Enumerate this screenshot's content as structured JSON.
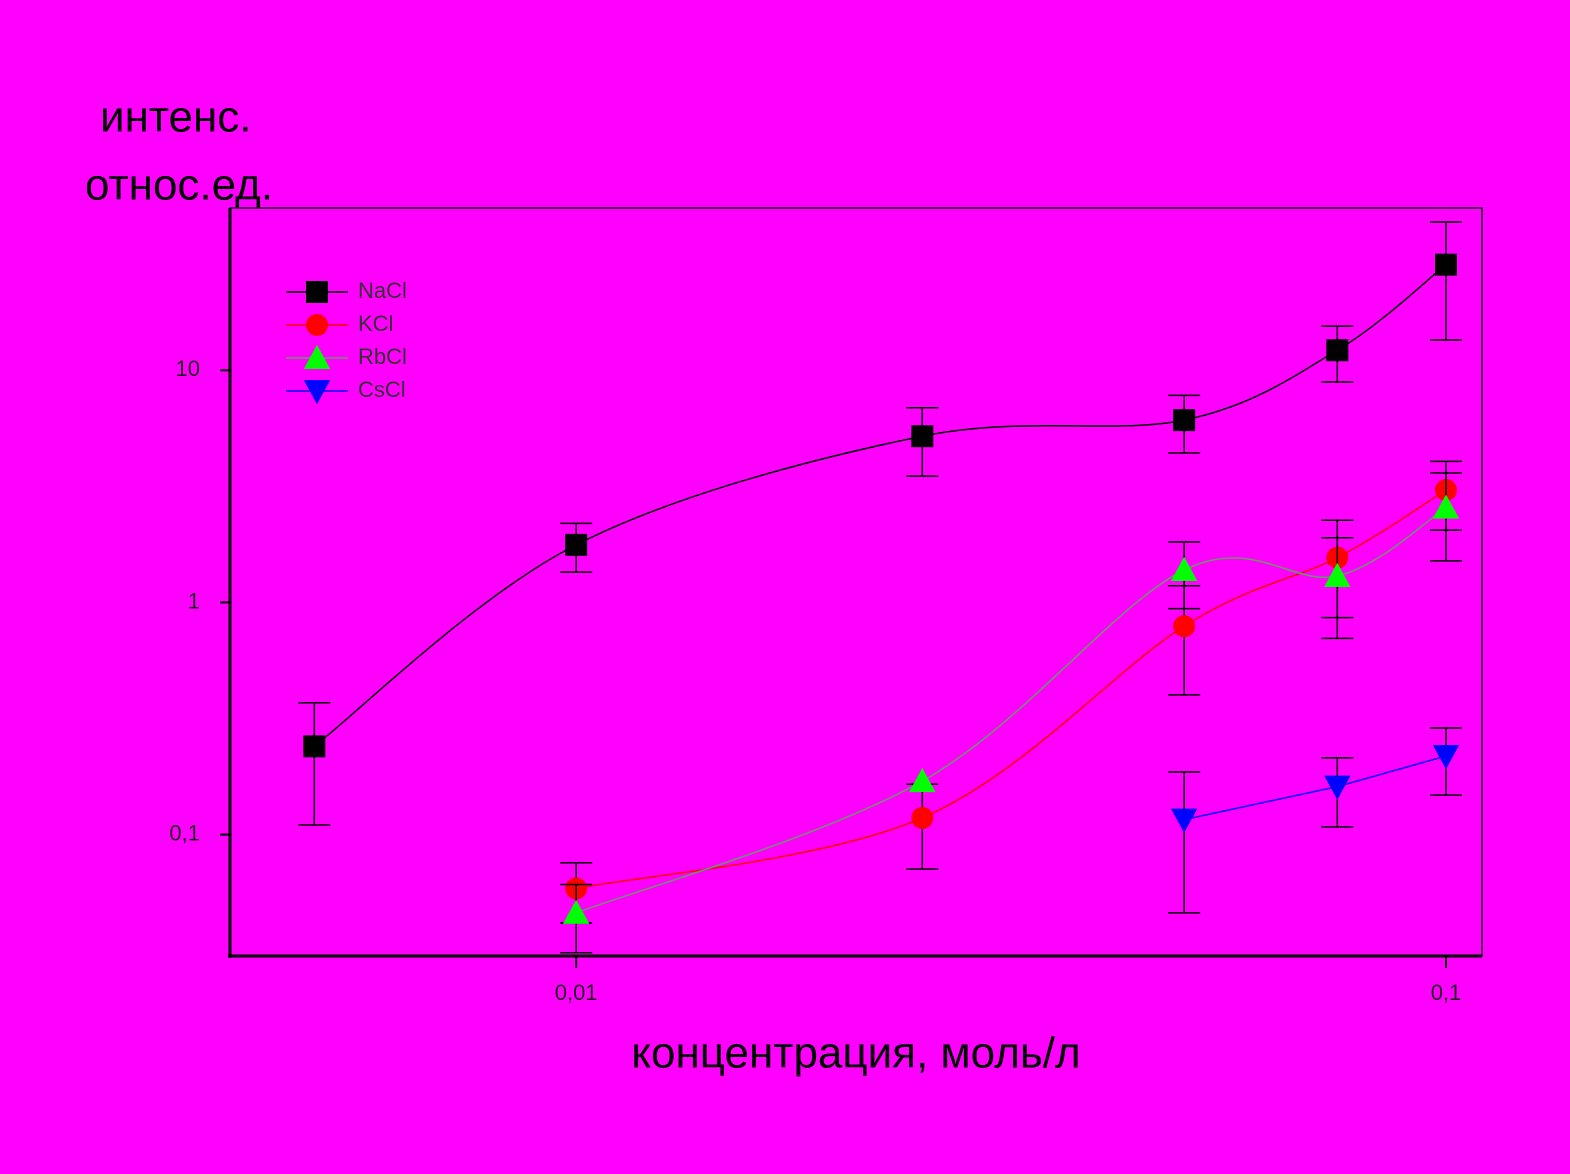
{
  "chart_data": {
    "type": "scatter",
    "y_label_lines": [
      "интенс.",
      "относ.ед."
    ],
    "x_label": "концентрация, моль/л",
    "x": [
      0.005,
      0.01,
      0.025,
      0.05,
      0.075,
      0.1
    ],
    "series": [
      {
        "name": "NaCl",
        "color": "#000000",
        "marker": "square",
        "values": [
          0.24,
          1.77,
          5.2,
          6.1,
          12.2,
          28.5
        ],
        "errors": [
          0.13,
          0.42,
          1.7,
          1.7,
          3.3,
          15
        ]
      },
      {
        "name": "KCl",
        "color": "#ff0000",
        "marker": "circle",
        "values": [
          null,
          0.0586,
          0.118,
          0.79,
          1.56,
          3.05
        ],
        "errors": [
          null,
          0.017,
          0.047,
          0.39,
          0.7,
          1.0
        ]
      },
      {
        "name": "RbCl",
        "color": "#00ff00",
        "line_color": "#669966",
        "marker": "triangle-up",
        "values": [
          null,
          0.046,
          0.17,
          1.38,
          1.3,
          2.56
        ],
        "errors": [
          null,
          0.015,
          null,
          0.44,
          0.6,
          1.05
        ]
      },
      {
        "name": "CsCl",
        "color": "#0000ff",
        "marker": "triangle-down",
        "smooth": false,
        "values": [
          null,
          null,
          null,
          0.116,
          0.161,
          0.218
        ],
        "errors": [
          null,
          null,
          null,
          0.07,
          0.053,
          0.07
        ]
      }
    ],
    "xscale": "log",
    "yscale": "log",
    "xlim": [
      0.004,
      0.11
    ],
    "ylim": [
      0.03,
      50
    ],
    "xticks": [
      {
        "value": 0.01,
        "label": "0,01"
      },
      {
        "value": 0.1,
        "label": "0,1"
      }
    ],
    "yticks": [
      {
        "value": 0.1,
        "label": "0,1"
      },
      1,
      10
    ],
    "legend": "upper-left"
  }
}
